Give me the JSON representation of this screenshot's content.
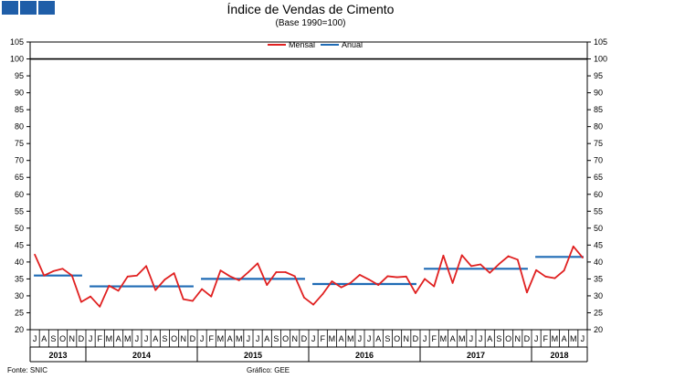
{
  "header": {
    "title": "Índice de Vendas de Cimento",
    "subtitle": "(Base 1990=100)"
  },
  "colors": {
    "mensal": "#e02020",
    "anual": "#1f6bb5",
    "ref": "#000000",
    "squares": "#1f5ea8"
  },
  "footer": {
    "source": "Fonte: SNIC",
    "graphic": "Gráfico: GEE"
  },
  "chart_data": {
    "type": "line",
    "title": "Índice de Vendas de Cimento",
    "subtitle": "(Base 1990=100)",
    "ylim": [
      20,
      105
    ],
    "yticks": [
      20,
      25,
      30,
      35,
      40,
      45,
      50,
      55,
      60,
      65,
      70,
      75,
      80,
      85,
      90,
      95,
      100,
      105
    ],
    "grid": false,
    "legend": {
      "position": "top-center",
      "entries": [
        "Mensal",
        "Anual"
      ]
    },
    "reference_line": 100,
    "month_labels": [
      "J",
      "A",
      "S",
      "O",
      "N",
      "D",
      "J",
      "F",
      "M",
      "A",
      "M",
      "J",
      "J",
      "A",
      "S",
      "O",
      "N",
      "D",
      "J",
      "F",
      "M",
      "A",
      "M",
      "J",
      "J",
      "A",
      "S",
      "O",
      "N",
      "D",
      "J",
      "F",
      "M",
      "A",
      "M",
      "J",
      "J",
      "A",
      "S",
      "O",
      "N",
      "D",
      "J",
      "F",
      "M",
      "A",
      "M",
      "J",
      "J",
      "A",
      "S",
      "O",
      "N",
      "D",
      "J",
      "F",
      "M",
      "A",
      "M",
      "J"
    ],
    "years": [
      {
        "label": "2013",
        "start": 0,
        "count": 6
      },
      {
        "label": "2014",
        "start": 6,
        "count": 12
      },
      {
        "label": "2015",
        "start": 18,
        "count": 12
      },
      {
        "label": "2016",
        "start": 30,
        "count": 12
      },
      {
        "label": "2017",
        "start": 42,
        "count": 12
      },
      {
        "label": "2018",
        "start": 54,
        "count": 6
      }
    ],
    "series": [
      {
        "name": "Mensal",
        "values": [
          42.2,
          36.0,
          37.3,
          38.0,
          36.0,
          28.2,
          29.8,
          26.8,
          33.0,
          31.5,
          35.7,
          36.0,
          38.8,
          31.7,
          34.8,
          36.7,
          29.0,
          28.5,
          32.0,
          29.8,
          37.5,
          35.8,
          34.6,
          37.0,
          39.6,
          33.2,
          37.0,
          37.0,
          35.8,
          29.5,
          27.4,
          30.5,
          34.3,
          32.5,
          33.8,
          36.2,
          34.8,
          33.2,
          35.8,
          35.5,
          35.7,
          30.8,
          35.0,
          32.8,
          41.9,
          33.8,
          42.0,
          38.8,
          39.3,
          36.8,
          39.4,
          41.7,
          40.7,
          31.0,
          37.6,
          35.7,
          35.2,
          37.5,
          44.6,
          41.3
        ]
      },
      {
        "name": "Anual",
        "segments": [
          {
            "start": 0,
            "end": 5,
            "value": 36.0
          },
          {
            "start": 6,
            "end": 17,
            "value": 32.8
          },
          {
            "start": 18,
            "end": 29,
            "value": 35.0
          },
          {
            "start": 30,
            "end": 41,
            "value": 33.5
          },
          {
            "start": 42,
            "end": 53,
            "value": 38.0
          },
          {
            "start": 54,
            "end": 59,
            "value": 41.5
          }
        ]
      }
    ]
  }
}
